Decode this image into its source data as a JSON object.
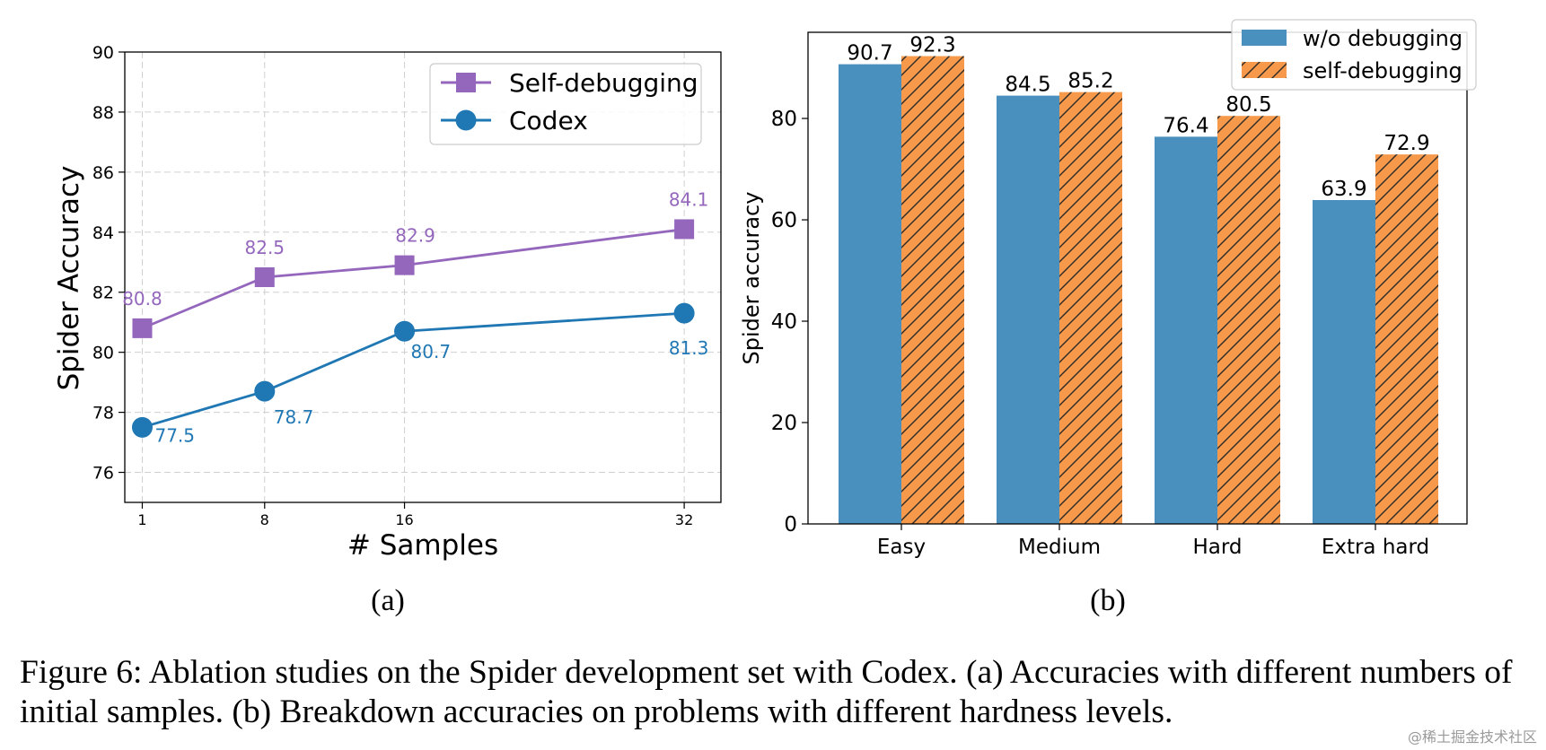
{
  "chart_data": [
    {
      "type": "line",
      "panel_label": "(a)",
      "xlabel": "# Samples",
      "ylabel": "Spider Accuracy",
      "x": [
        1,
        8,
        16,
        32
      ],
      "x_tick_labels": [
        "1",
        "8",
        "16",
        "32"
      ],
      "ylim": [
        75,
        90
      ],
      "y_ticks": [
        76,
        78,
        80,
        82,
        84,
        86,
        88,
        90
      ],
      "grid": true,
      "legend_position": "top-right",
      "series": [
        {
          "name": "Self-debugging",
          "marker": "square",
          "color": "#9467bd",
          "values": [
            80.8,
            82.5,
            82.9,
            84.1
          ],
          "labels": [
            "80.8",
            "82.5",
            "82.9",
            "84.1"
          ]
        },
        {
          "name": "Codex",
          "marker": "circle",
          "color": "#1f77b4",
          "values": [
            77.5,
            78.7,
            80.7,
            81.3
          ],
          "labels": [
            "77.5",
            "78.7",
            "80.7",
            "81.3"
          ]
        }
      ]
    },
    {
      "type": "bar",
      "panel_label": "(b)",
      "xlabel": "",
      "ylabel": "Spider accuracy",
      "categories": [
        "Easy",
        "Medium",
        "Hard",
        "Extra hard"
      ],
      "ylim": [
        0,
        97
      ],
      "y_ticks": [
        0,
        20,
        40,
        60,
        80
      ],
      "legend_position": "top-right",
      "series": [
        {
          "name": "w/o debugging",
          "color": "#4a90be",
          "hatch": false,
          "values": [
            90.7,
            84.5,
            76.4,
            63.9
          ],
          "labels": [
            "90.7",
            "84.5",
            "76.4",
            "63.9"
          ]
        },
        {
          "name": "self-debugging",
          "color": "#f6994a",
          "hatch": true,
          "values": [
            92.3,
            85.2,
            80.5,
            72.9
          ],
          "labels": [
            "92.3",
            "85.2",
            "80.5",
            "72.9"
          ]
        }
      ]
    }
  ],
  "caption": "Figure 6: Ablation studies on the Spider development set with Codex. (a) Accuracies with different numbers of initial samples. (b) Breakdown accuracies on problems with different hardness levels.",
  "watermark": "@稀土掘金技术社区"
}
